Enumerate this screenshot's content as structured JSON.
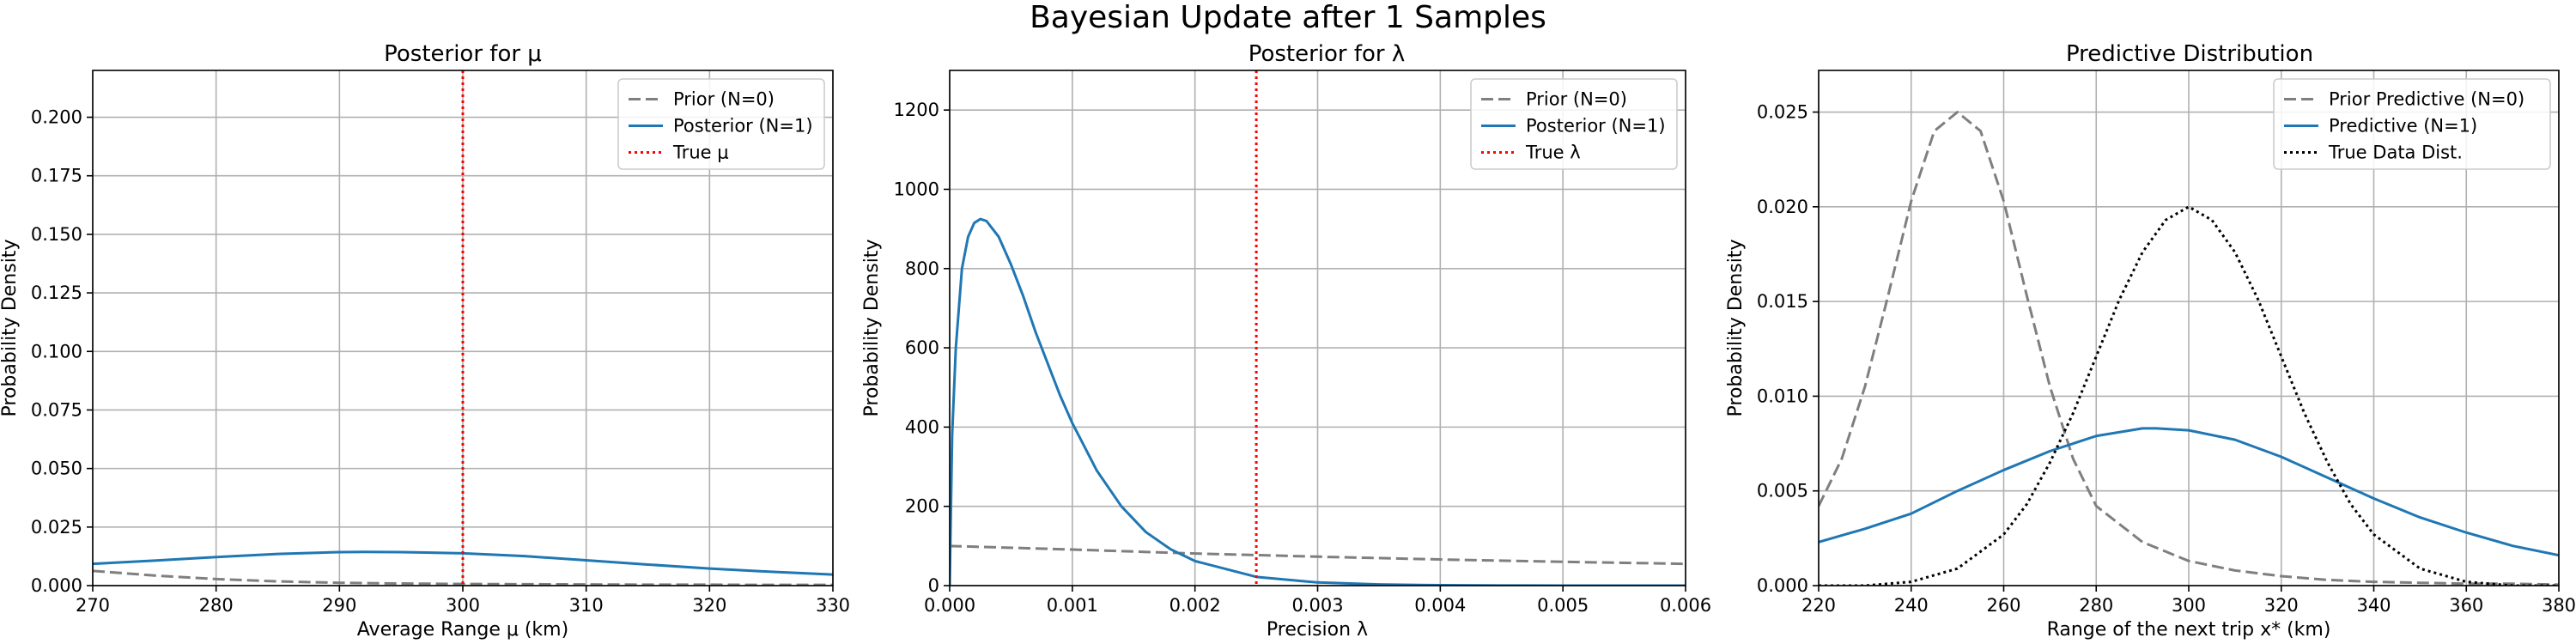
{
  "figure": {
    "suptitle": "Bayesian Update after 1 Samples"
  },
  "colors": {
    "prior": "#7f7f7f",
    "posterior": "#1f77b4",
    "truth": "#ff0000",
    "true_data": "#000000",
    "grid": "#b0b0b0"
  },
  "chart_data": [
    {
      "type": "line",
      "title": "Posterior for μ",
      "xlabel": "Average Range μ (km)",
      "ylabel": "Probability Density",
      "xlim": [
        270,
        330
      ],
      "ylim": [
        0,
        0.22
      ],
      "xticks": [
        270,
        280,
        290,
        300,
        310,
        320,
        330
      ],
      "xtick_labels": [
        "270",
        "280",
        "290",
        "300",
        "310",
        "320",
        "330"
      ],
      "yticks": [
        0,
        0.025,
        0.05,
        0.075,
        0.1,
        0.125,
        0.15,
        0.175,
        0.2
      ],
      "ytick_labels": [
        "0.000",
        "0.025",
        "0.050",
        "0.075",
        "0.100",
        "0.125",
        "0.150",
        "0.175",
        "0.200"
      ],
      "grid": true,
      "legend_position": "top-right",
      "series": [
        {
          "name": "Prior (N=0)",
          "style": "dashed",
          "color": "#7f7f7f",
          "x": [
            270,
            275,
            280,
            285,
            290,
            295,
            300,
            305,
            310,
            315,
            320,
            325,
            330
          ],
          "y": [
            0.0063,
            0.0043,
            0.0028,
            0.0018,
            0.0012,
            0.0009,
            0.0007,
            0.0006,
            0.0005,
            0.0004,
            0.0004,
            0.0003,
            0.0003
          ]
        },
        {
          "name": "Posterior (N=1)",
          "style": "solid",
          "color": "#1f77b4",
          "x": [
            270,
            275,
            280,
            285,
            290,
            292,
            295,
            300,
            305,
            310,
            315,
            320,
            325,
            330
          ],
          "y": [
            0.0093,
            0.0107,
            0.0122,
            0.0135,
            0.0143,
            0.0144,
            0.0143,
            0.0138,
            0.0126,
            0.0108,
            0.009,
            0.0073,
            0.0059,
            0.0047
          ]
        }
      ],
      "vlines": [
        {
          "name": "True μ",
          "x": 300,
          "style": "dotted",
          "color": "#ff0000"
        }
      ]
    },
    {
      "type": "line",
      "title": "Posterior for λ",
      "xlabel": "Precision λ",
      "ylabel": "Probability Density",
      "xlim": [
        0,
        0.006
      ],
      "ylim": [
        0,
        1300
      ],
      "xticks": [
        0,
        0.001,
        0.002,
        0.003,
        0.004,
        0.005,
        0.006
      ],
      "xtick_labels": [
        "0.000",
        "0.001",
        "0.002",
        "0.003",
        "0.004",
        "0.005",
        "0.006"
      ],
      "yticks": [
        0,
        200,
        400,
        600,
        800,
        1000,
        1200
      ],
      "ytick_labels": [
        "0",
        "200",
        "400",
        "600",
        "800",
        "1000",
        "1200"
      ],
      "grid": true,
      "legend_position": "top-right",
      "series": [
        {
          "name": "Prior (N=0)",
          "style": "dashed",
          "color": "#7f7f7f",
          "x": [
            0,
            0.001,
            0.002,
            0.003,
            0.004,
            0.005,
            0.006
          ],
          "y": [
            100,
            91,
            81,
            73,
            66,
            60,
            55
          ]
        },
        {
          "name": "Posterior (N=1)",
          "style": "solid",
          "color": "#1f77b4",
          "x": [
            0,
            2e-05,
            5e-05,
            0.0001,
            0.00015,
            0.0002,
            0.00025,
            0.0003,
            0.0004,
            0.0005,
            0.0006,
            0.0007,
            0.0008,
            0.0009,
            0.001,
            0.0012,
            0.0014,
            0.0016,
            0.0018,
            0.002,
            0.0025,
            0.003,
            0.0035,
            0.004,
            0.0045,
            0.005,
            0.006
          ],
          "y": [
            0,
            380,
            600,
            800,
            880,
            915,
            925,
            920,
            880,
            810,
            730,
            640,
            560,
            480,
            410,
            290,
            200,
            135,
            92,
            62,
            22,
            8,
            3,
            1,
            0.4,
            0.1,
            0
          ]
        }
      ],
      "vlines": [
        {
          "name": "True λ",
          "x": 0.0025,
          "style": "dotted",
          "color": "#ff0000"
        }
      ]
    },
    {
      "type": "line",
      "title": "Predictive Distribution",
      "xlabel": "Range of the next trip x* (km)",
      "ylabel": "Probability Density",
      "xlim": [
        220,
        380
      ],
      "ylim": [
        0,
        0.0272
      ],
      "xticks": [
        220,
        240,
        260,
        280,
        300,
        320,
        340,
        360,
        380
      ],
      "xtick_labels": [
        "220",
        "240",
        "260",
        "280",
        "300",
        "320",
        "340",
        "360",
        "380"
      ],
      "yticks": [
        0,
        0.005,
        0.01,
        0.015,
        0.02,
        0.025
      ],
      "ytick_labels": [
        "0.000",
        "0.005",
        "0.010",
        "0.015",
        "0.020",
        "0.025"
      ],
      "grid": true,
      "legend_position": "top-right",
      "series": [
        {
          "name": "Prior Predictive (N=0)",
          "style": "dashed",
          "color": "#7f7f7f",
          "x": [
            220,
            225,
            230,
            235,
            240,
            245,
            250,
            255,
            260,
            265,
            270,
            275,
            280,
            290,
            300,
            310,
            320,
            330,
            340,
            350,
            360,
            370,
            380
          ],
          "y": [
            0.0042,
            0.0067,
            0.0105,
            0.0153,
            0.0203,
            0.024,
            0.025,
            0.024,
            0.0203,
            0.0153,
            0.0105,
            0.0067,
            0.0042,
            0.0023,
            0.0013,
            0.0008,
            0.0005,
            0.0003,
            0.0002,
            0.00015,
            0.0001,
            0.0001,
            5e-05
          ]
        },
        {
          "name": "Predictive (N=1)",
          "style": "solid",
          "color": "#1f77b4",
          "x": [
            220,
            230,
            240,
            250,
            260,
            270,
            280,
            290,
            293,
            300,
            310,
            320,
            330,
            340,
            350,
            360,
            370,
            380
          ],
          "y": [
            0.0023,
            0.003,
            0.0038,
            0.005,
            0.0061,
            0.0071,
            0.0079,
            0.0083,
            0.0083,
            0.0082,
            0.0077,
            0.0068,
            0.0057,
            0.0046,
            0.0036,
            0.0028,
            0.0021,
            0.0016
          ]
        },
        {
          "name": "True Data Dist.",
          "style": "dotted",
          "color": "#000000",
          "x": [
            220,
            230,
            240,
            250,
            260,
            265,
            270,
            275,
            280,
            285,
            290,
            295,
            300,
            305,
            310,
            315,
            320,
            325,
            330,
            335,
            340,
            350,
            360,
            370,
            380
          ],
          "y": [
            0.0,
            0.0,
            0.0002,
            0.0009,
            0.0027,
            0.0043,
            0.0065,
            0.0091,
            0.0121,
            0.0151,
            0.0176,
            0.0193,
            0.02,
            0.0193,
            0.0176,
            0.0151,
            0.0121,
            0.0091,
            0.0065,
            0.0043,
            0.0027,
            0.0009,
            0.0002,
            0.0,
            0.0
          ]
        }
      ]
    }
  ]
}
